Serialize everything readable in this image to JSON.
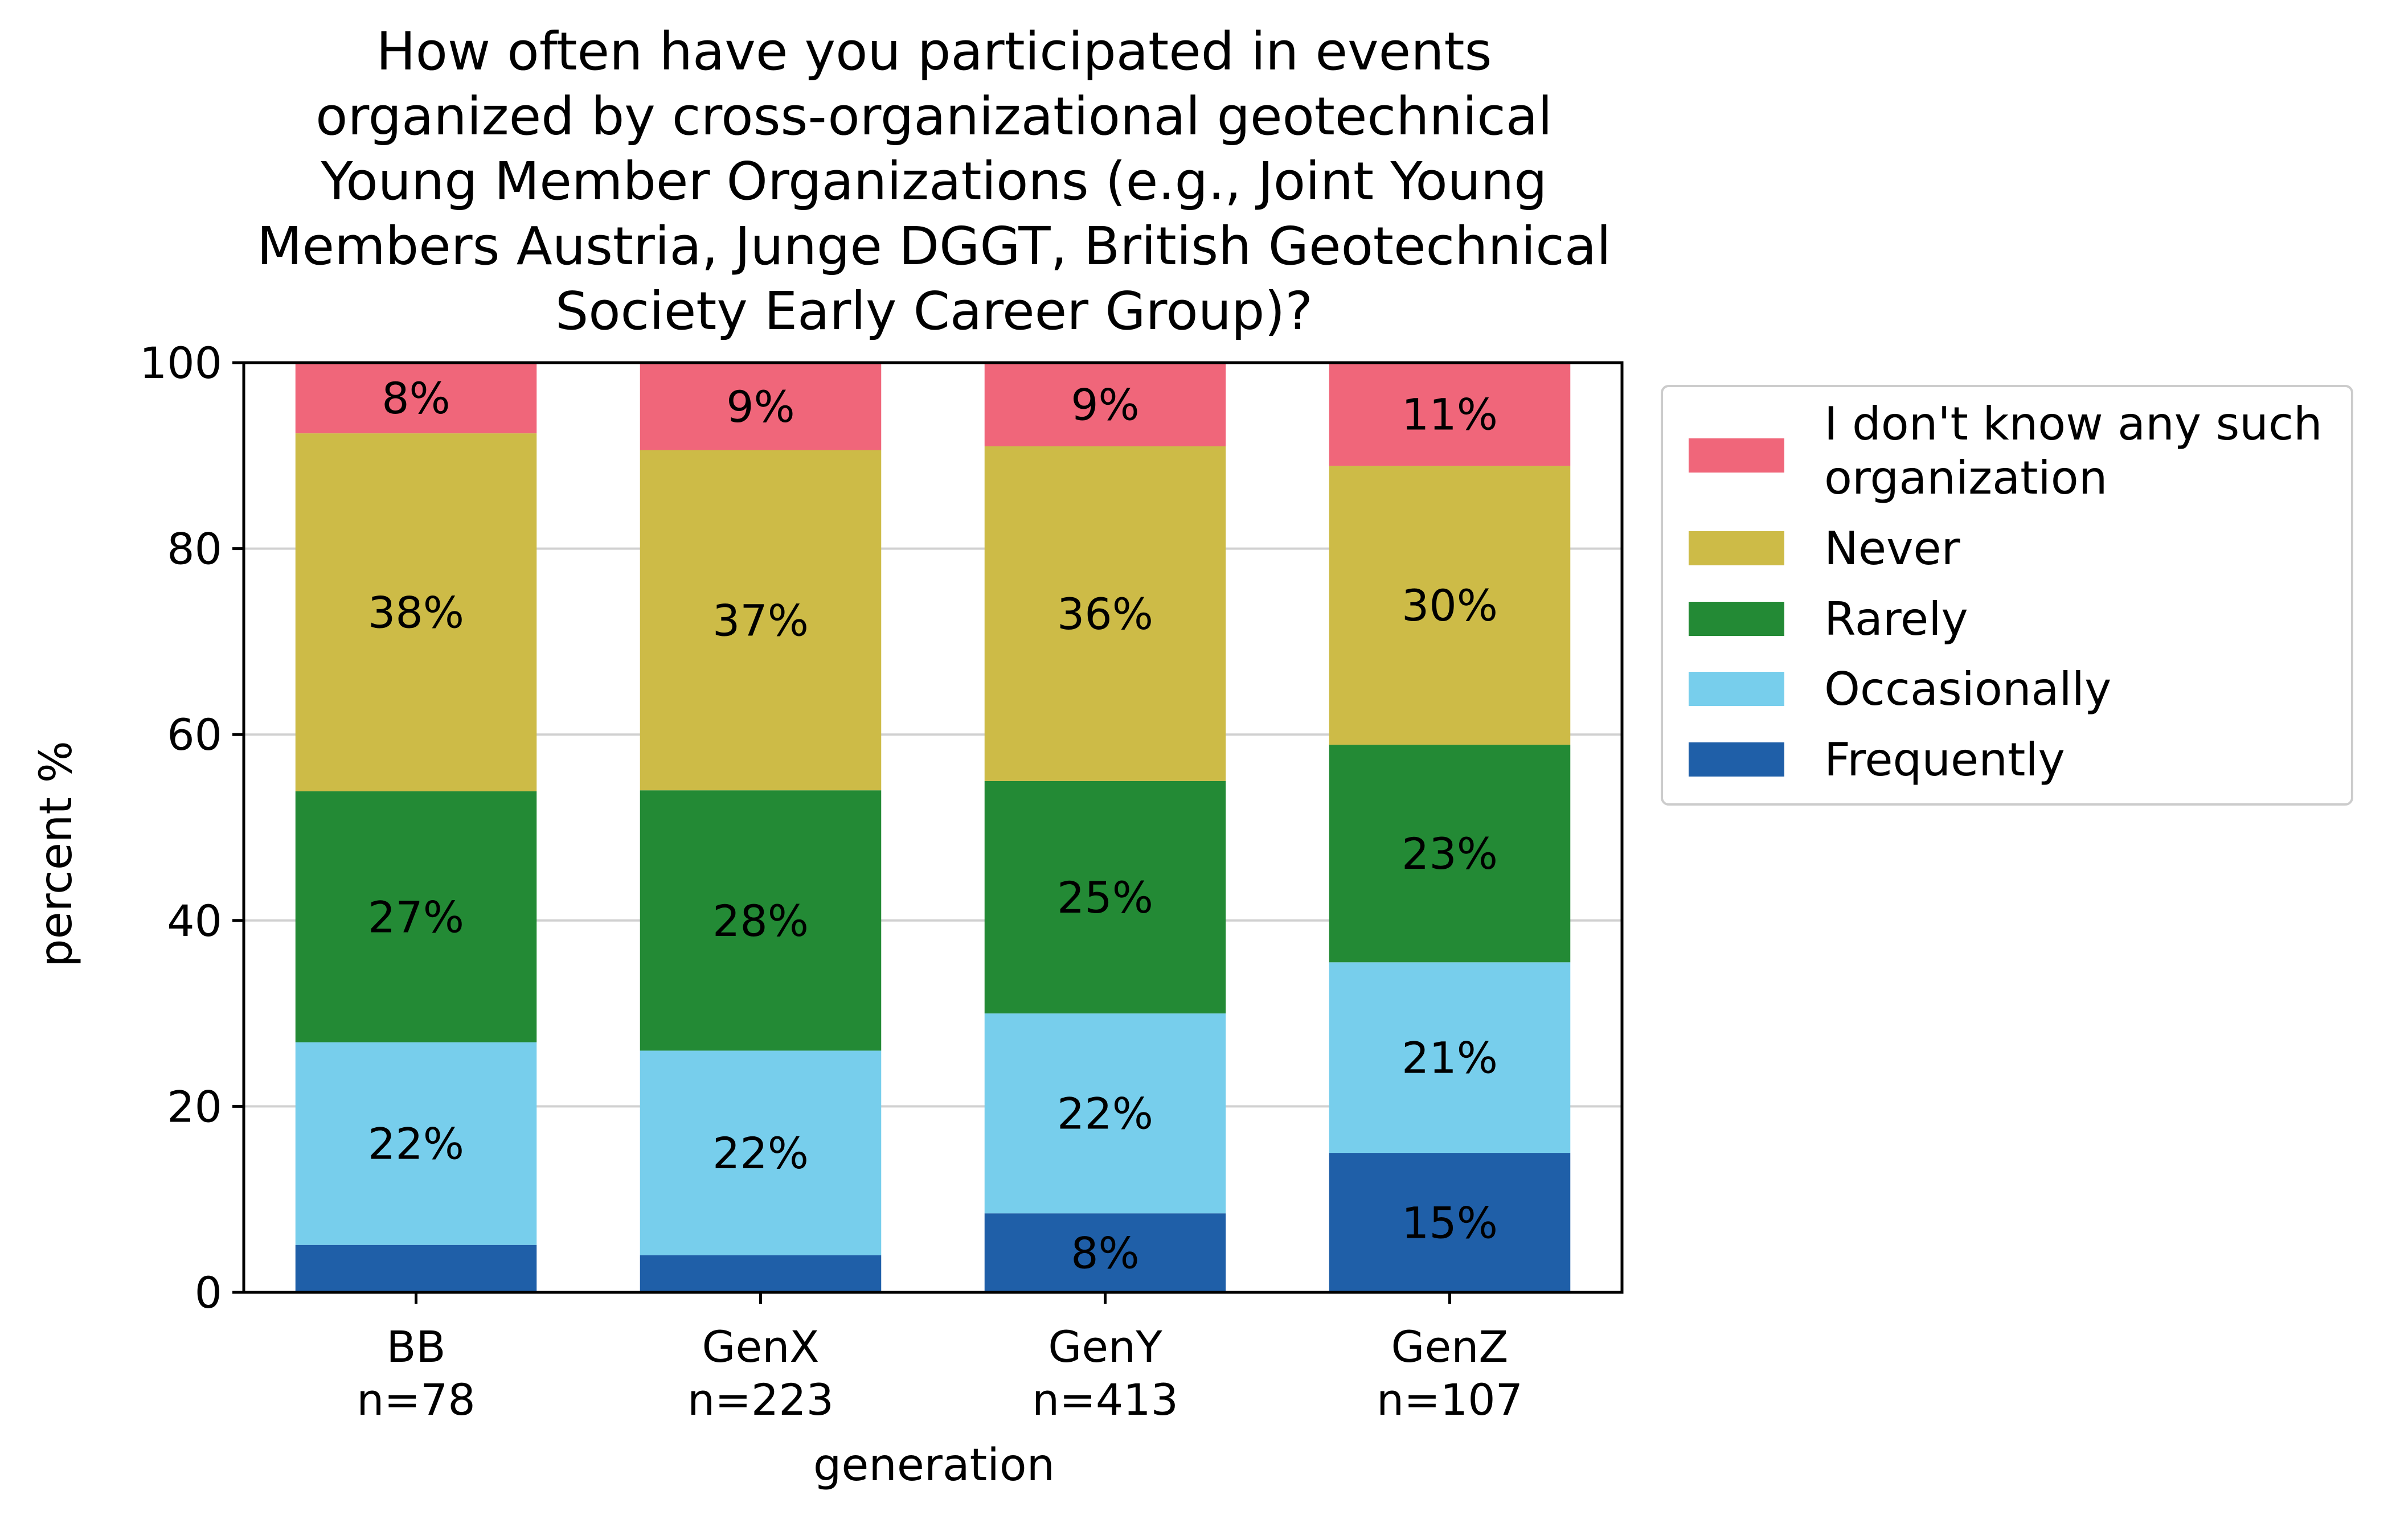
{
  "chart_data": {
    "type": "bar",
    "stacked": true,
    "title_lines": [
      "How often have you participated in events",
      "organized by cross-organizational geotechnical",
      "Young Member Organizations (e.g., Joint Young",
      "Members Austria, Junge DGGT, British Geotechnical",
      "Society Early Career Group)?"
    ],
    "xlabel": "generation",
    "ylabel": "percent %",
    "ylim": [
      0,
      100
    ],
    "yticks": [
      0,
      20,
      40,
      60,
      80,
      100
    ],
    "grid": "horizontal",
    "categories": [
      {
        "name": "BB",
        "n": "n=78"
      },
      {
        "name": "GenX",
        "n": "n=223"
      },
      {
        "name": "GenY",
        "n": "n=413"
      },
      {
        "name": "GenZ",
        "n": "n=107"
      }
    ],
    "series": [
      {
        "name": "Frequently",
        "color": "#1f5fa8",
        "values": [
          5.1,
          4.0,
          8.5,
          15.0
        ],
        "labels": [
          "",
          "",
          "8%",
          "15%"
        ]
      },
      {
        "name": "Occasionally",
        "color": "#77ceec",
        "values": [
          21.8,
          22.0,
          21.5,
          20.5
        ],
        "labels": [
          "22%",
          "22%",
          "22%",
          "21%"
        ]
      },
      {
        "name": "Rarely",
        "color": "#238a35",
        "values": [
          27.0,
          28.0,
          25.0,
          23.4
        ],
        "labels": [
          "27%",
          "28%",
          "25%",
          "23%"
        ]
      },
      {
        "name": "Never",
        "color": "#cdbb47",
        "values": [
          38.5,
          36.6,
          36.0,
          30.0
        ],
        "labels": [
          "38%",
          "37%",
          "36%",
          "30%"
        ]
      },
      {
        "name": "I don't know any such organization",
        "legend_lines": [
          "I don't know any such",
          "organization"
        ],
        "color": "#f0667a",
        "values": [
          7.6,
          9.4,
          9.0,
          11.1
        ],
        "labels": [
          "8%",
          "9%",
          "9%",
          "11%"
        ]
      }
    ],
    "legend": {
      "placement": "outside-right-top",
      "order": [
        "I don't know any such organization",
        "Never",
        "Rarely",
        "Occasionally",
        "Frequently"
      ]
    }
  }
}
